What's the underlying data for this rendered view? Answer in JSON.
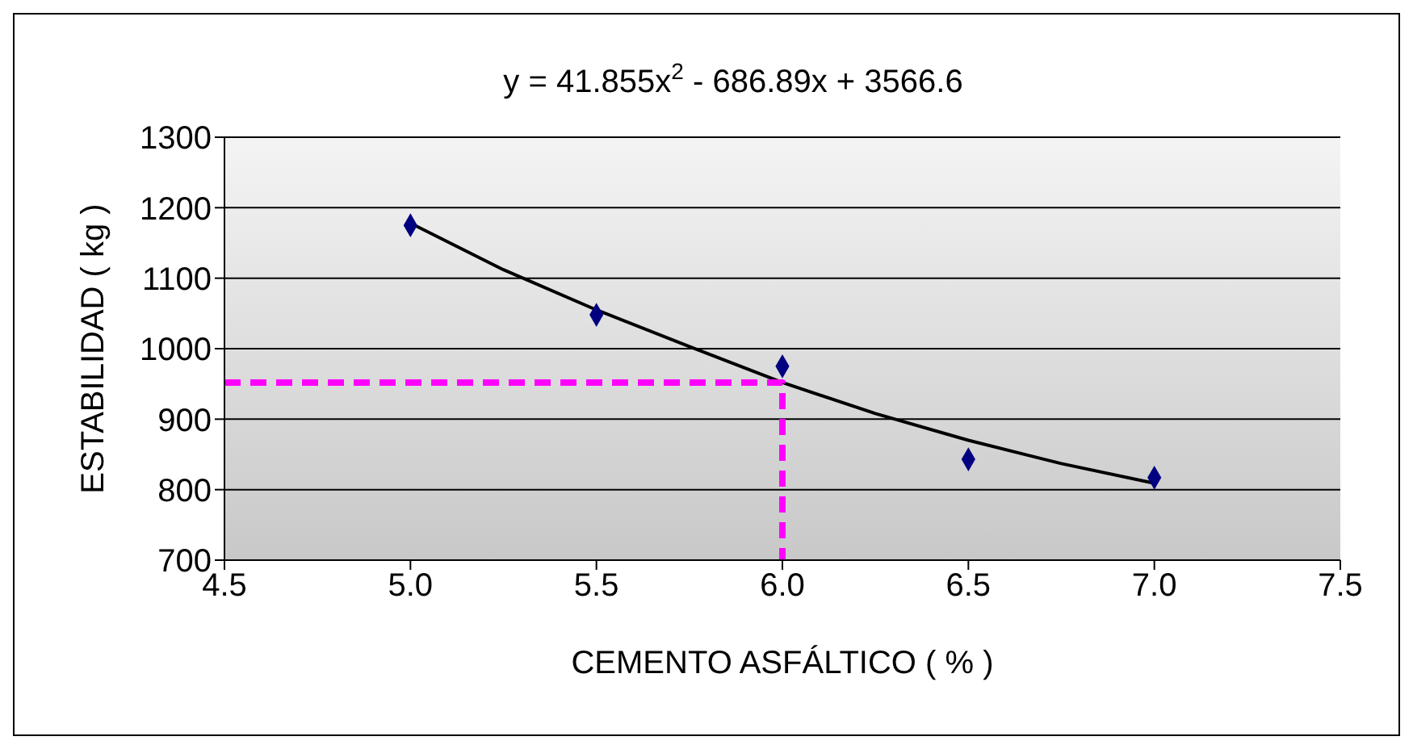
{
  "chart_data": {
    "type": "scatter",
    "title": "y = 41.855x$^{2}$ - 686.89x + 3566.6",
    "xlabel": "CEMENTO ASFÁLTICO ( % )",
    "ylabel": "ESTABILIDAD ( kg )",
    "series": [
      {
        "color": "#000080",
        "marker": "diamond",
        "x": [
          5.0,
          5.5,
          6.0,
          6.5,
          7.0
        ],
        "values": [
          1175,
          1048,
          975,
          843,
          817
        ]
      },
      {
        "type": "line",
        "color": "#000000",
        "marker": "none",
        "line_style": "solid",
        "x": [
          5.0,
          5.25,
          5.5,
          5.75,
          6.0,
          6.25,
          6.5,
          6.75,
          7.0
        ],
        "values": [
          1178,
          1112,
          1055,
          1003,
          952,
          908,
          870,
          837,
          809
        ]
      },
      {
        "type": "line",
        "color": "#ff00ff",
        "marker": "none",
        "line_style": "dashed",
        "x": [
          4.5,
          6.0,
          6.0
        ],
        "values": [
          952,
          952,
          700
        ]
      }
    ],
    "xlim": [
      4.5,
      7.5
    ],
    "xticks": [
      4.5,
      {
        "value": 5,
        "label": "5.0"
      },
      5.5,
      {
        "value": 6,
        "label": "6.0"
      },
      6.5,
      {
        "value": 7,
        "label": "7.0"
      },
      7.5
    ],
    "ylim": [
      700,
      1300
    ],
    "yticks": [
      700,
      800,
      900,
      1000,
      1100,
      1200,
      1300
    ],
    "grid": "y"
  }
}
